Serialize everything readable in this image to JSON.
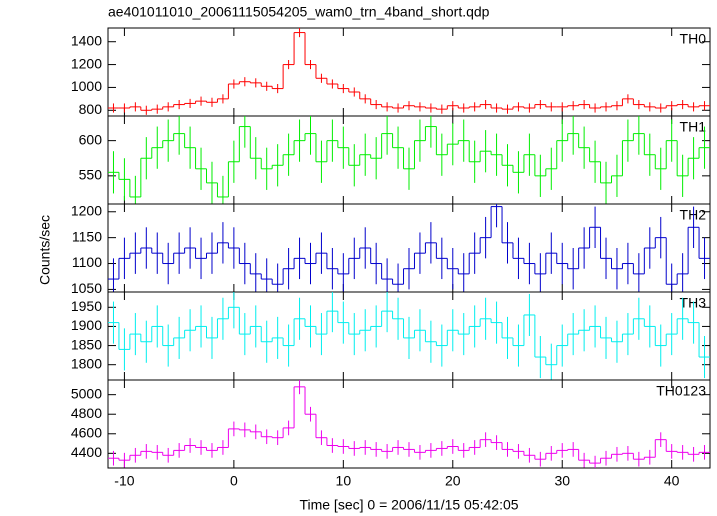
{
  "chart_data": {
    "type": "step",
    "title": "ae401011010_20061115054205_wam0_trn_4band_short.qdp",
    "x_label": "Time [sec] 0 = 2006/11/15 05:42:05",
    "y_label": "Counts/sec",
    "xlim": [
      -11.5,
      43.5
    ],
    "xticks": [
      -10,
      0,
      10,
      20,
      30,
      40
    ],
    "x": [
      -11,
      -10,
      -9,
      -8,
      -7,
      -6,
      -5,
      -4,
      -3,
      -2,
      -1,
      0,
      1,
      2,
      3,
      4,
      5,
      6,
      7,
      8,
      9,
      10,
      11,
      12,
      13,
      14,
      15,
      16,
      17,
      18,
      19,
      20,
      21,
      22,
      23,
      24,
      25,
      26,
      27,
      28,
      29,
      30,
      31,
      32,
      33,
      34,
      35,
      36,
      37,
      38,
      39,
      40,
      41,
      42,
      43
    ],
    "panels": [
      {
        "name": "TH0",
        "color": "#ff0000",
        "error": 40,
        "ylim": [
          750,
          1520
        ],
        "yticks": [
          800,
          1000,
          1200,
          1400
        ],
        "values": [
          820,
          820,
          830,
          800,
          810,
          830,
          850,
          860,
          880,
          870,
          900,
          1030,
          1050,
          1040,
          1010,
          990,
          1200,
          1480,
          1200,
          1080,
          1030,
          990,
          960,
          900,
          850,
          830,
          820,
          840,
          830,
          820,
          810,
          840,
          820,
          830,
          850,
          820,
          810,
          830,
          820,
          850,
          830,
          830,
          840,
          850,
          820,
          830,
          840,
          900,
          850,
          830,
          820,
          840,
          850,
          830,
          840
        ]
      },
      {
        "name": "TH1",
        "color": "#00ee00",
        "error": 30,
        "ylim": [
          510,
          635
        ],
        "yticks": [
          550,
          600
        ],
        "values": [
          555,
          545,
          520,
          575,
          590,
          600,
          610,
          590,
          560,
          540,
          520,
          570,
          620,
          575,
          560,
          565,
          580,
          600,
          610,
          570,
          600,
          590,
          565,
          580,
          575,
          610,
          590,
          560,
          600,
          620,
          580,
          595,
          600,
          570,
          585,
          580,
          565,
          555,
          580,
          550,
          560,
          600,
          610,
          590,
          570,
          540,
          550,
          600,
          610,
          580,
          560,
          600,
          550,
          575,
          590
        ]
      },
      {
        "name": "TH2",
        "color": "#0000cc",
        "error": 40,
        "ylim": [
          1045,
          1215
        ],
        "yticks": [
          1050,
          1100,
          1150,
          1200
        ],
        "values": [
          1070,
          1110,
          1120,
          1130,
          1120,
          1100,
          1120,
          1130,
          1110,
          1120,
          1140,
          1130,
          1100,
          1080,
          1070,
          1060,
          1090,
          1110,
          1100,
          1120,
          1090,
          1080,
          1110,
          1130,
          1100,
          1070,
          1060,
          1090,
          1120,
          1140,
          1110,
          1090,
          1080,
          1120,
          1150,
          1210,
          1140,
          1110,
          1100,
          1080,
          1120,
          1100,
          1090,
          1130,
          1170,
          1110,
          1090,
          1100,
          1080,
          1130,
          1150,
          1060,
          1080,
          1170,
          1110
        ]
      },
      {
        "name": "TH3",
        "color": "#00eeee",
        "error": 55,
        "ylim": [
          1760,
          1990
        ],
        "yticks": [
          1800,
          1850,
          1900,
          1950
        ],
        "values": [
          1910,
          1840,
          1880,
          1860,
          1900,
          1850,
          1870,
          1890,
          1900,
          1870,
          1920,
          1950,
          1880,
          1900,
          1860,
          1870,
          1850,
          1920,
          1900,
          1880,
          1940,
          1910,
          1880,
          1890,
          1900,
          1940,
          1920,
          1870,
          1890,
          1860,
          1850,
          1890,
          1880,
          1900,
          1920,
          1910,
          1870,
          1850,
          1930,
          1820,
          1800,
          1850,
          1880,
          1890,
          1900,
          1870,
          1860,
          1880,
          1920,
          1900,
          1850,
          1880,
          1920,
          1910,
          1820
        ]
      },
      {
        "name": "TH0123",
        "color": "#ee00ee",
        "error": 75,
        "ylim": [
          4250,
          5150
        ],
        "yticks": [
          4400,
          4600,
          4800,
          5000
        ],
        "values": [
          4350,
          4330,
          4380,
          4420,
          4410,
          4380,
          4430,
          4480,
          4460,
          4430,
          4460,
          4650,
          4640,
          4620,
          4570,
          4560,
          4660,
          5080,
          4800,
          4560,
          4480,
          4470,
          4450,
          4460,
          4440,
          4420,
          4460,
          4440,
          4410,
          4430,
          4450,
          4470,
          4430,
          4460,
          4540,
          4510,
          4440,
          4420,
          4380,
          4340,
          4400,
          4430,
          4440,
          4330,
          4300,
          4350,
          4390,
          4400,
          4340,
          4360,
          4540,
          4420,
          4410,
          4390,
          4410
        ]
      }
    ]
  }
}
